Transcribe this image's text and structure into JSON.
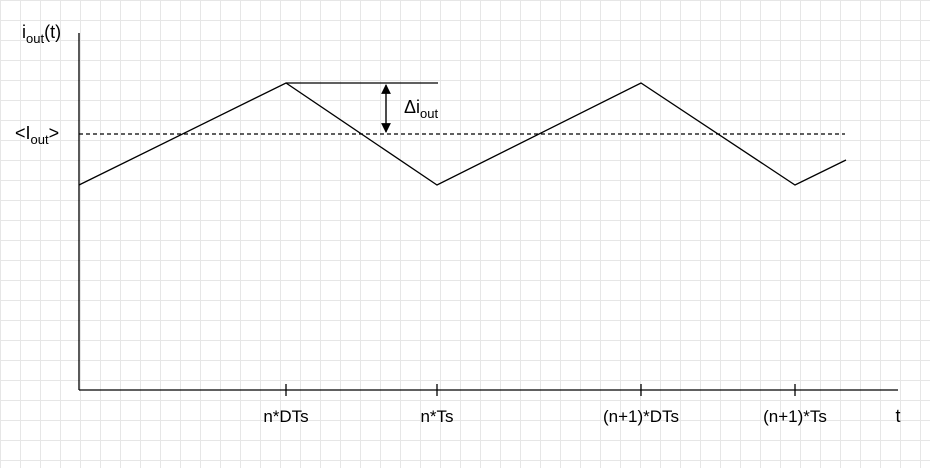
{
  "labels": {
    "y_axis_main": "i",
    "y_axis_sub": "out",
    "y_axis_suffix": "(t)",
    "avg_prefix": "<I",
    "avg_sub": "out",
    "avg_suffix": ">",
    "ripple_main": "Δi",
    "ripple_sub": "out",
    "x_axis": "t"
  },
  "ticks": [
    "n*DTs",
    "n*Ts",
    "(n+1)*DTs",
    "(n+1)*Ts"
  ],
  "colors": {
    "line": "#000000",
    "grid": "#e6e6e6"
  }
}
